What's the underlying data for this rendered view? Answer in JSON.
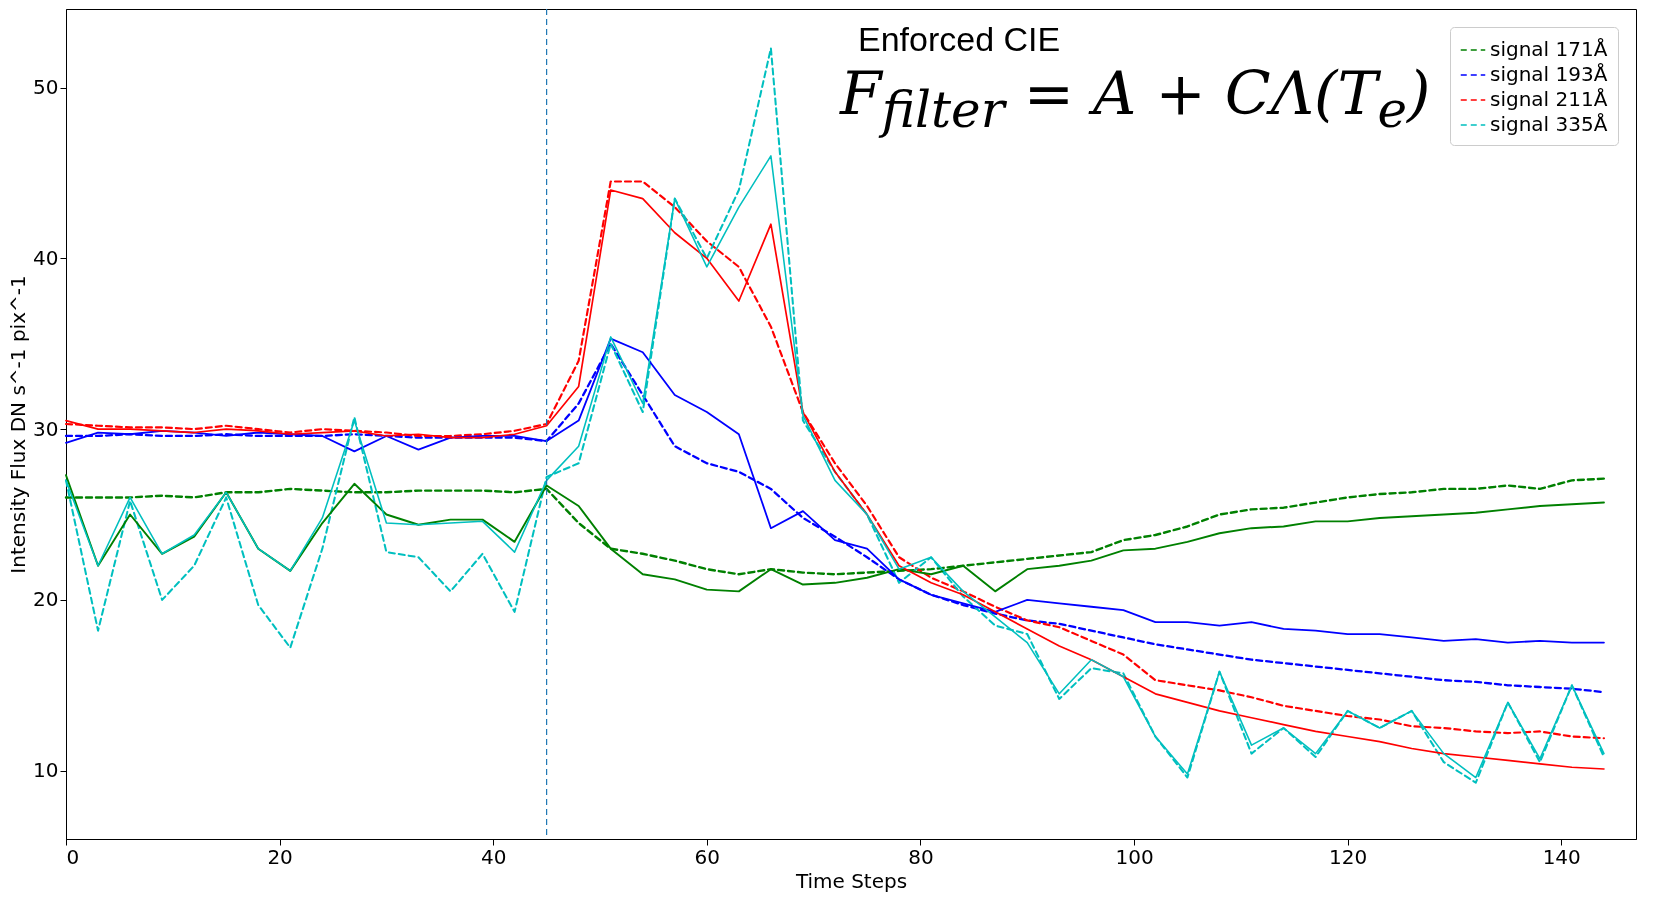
{
  "chart_data": {
    "type": "line",
    "title": "Enforced CIE",
    "annotations": [
      "F$_{filter}$ = A + CΛ(T$_{e}$)"
    ],
    "xlabel": "Time Steps",
    "ylabel": "Intensity Flux DN s^-1 pix^-1",
    "xlim": [
      0,
      147
    ],
    "xticks": [
      0,
      20,
      40,
      60,
      80,
      100,
      120,
      140
    ],
    "ylim": [
      6,
      54.6
    ],
    "yticks": [
      10,
      20,
      30,
      40,
      50
    ],
    "legend": "top right",
    "grid": false,
    "x": [
      0,
      3,
      6,
      9,
      12,
      15,
      18,
      21,
      24,
      27,
      30,
      33,
      36,
      39,
      42,
      45,
      48,
      51,
      54,
      57,
      60,
      63,
      66,
      69,
      72,
      75,
      78,
      81,
      84,
      87,
      90,
      93,
      96,
      99,
      102,
      105,
      108,
      111,
      114,
      117,
      120,
      123,
      126,
      129,
      132,
      135,
      138,
      141,
      144
    ],
    "ref_lines": [
      {
        "axis": "x",
        "value": 45,
        "color": "#1f77b4",
        "line_style": "dashed"
      }
    ],
    "series": [
      {
        "name": "signal 171Å",
        "color": "#008000",
        "line_style": "dashed",
        "values": [
          26,
          26,
          26,
          26.1,
          26,
          26.3,
          26.3,
          26.5,
          26.4,
          26.3,
          26.3,
          26.4,
          26.4,
          26.4,
          26.3,
          26.5,
          24.5,
          23,
          22.7,
          22.3,
          21.8,
          21.5,
          21.8,
          21.6,
          21.5,
          21.6,
          21.7,
          21.8,
          22,
          22.2,
          22.4,
          22.6,
          22.8,
          23.5,
          23.8,
          24.3,
          25,
          25.3,
          25.4,
          25.7,
          26,
          26.2,
          26.3,
          26.5,
          26.5,
          26.7,
          26.5,
          27,
          27.1
        ]
      },
      {
        "name": "signal 193Å",
        "color": "#0000ff",
        "line_style": "dashed",
        "values": [
          29.6,
          29.6,
          29.7,
          29.6,
          29.6,
          29.7,
          29.6,
          29.6,
          29.6,
          29.7,
          29.6,
          29.5,
          29.5,
          29.5,
          29.5,
          29.3,
          31.5,
          35,
          32,
          29,
          28,
          27.5,
          26.5,
          24.8,
          23.7,
          22.5,
          21.2,
          20.3,
          19.7,
          19.2,
          18.8,
          18.6,
          18.2,
          17.8,
          17.4,
          17.1,
          16.8,
          16.5,
          16.3,
          16.1,
          15.9,
          15.7,
          15.5,
          15.3,
          15.2,
          15,
          14.9,
          14.8,
          14.6
        ]
      },
      {
        "name": "signal 211Å",
        "color": "#ff0000",
        "line_style": "dashed",
        "values": [
          30.3,
          30.2,
          30.1,
          30.1,
          30,
          30.2,
          30,
          29.8,
          30,
          29.9,
          29.8,
          29.6,
          29.6,
          29.7,
          29.9,
          30.3,
          34,
          44.5,
          44.5,
          43,
          41,
          39.5,
          36,
          31,
          28,
          25.5,
          22.5,
          21.3,
          20.5,
          19.6,
          18.8,
          18.4,
          17.6,
          16.8,
          15.3,
          15,
          14.7,
          14.3,
          13.8,
          13.5,
          13.2,
          13,
          12.6,
          12.5,
          12.3,
          12.2,
          12.3,
          12,
          11.9
        ]
      },
      {
        "name": "signal 335Å",
        "color": "#00bfbf",
        "line_style": "dashed",
        "values": [
          27,
          18.2,
          25.8,
          20,
          22,
          26,
          19.7,
          17.2,
          23,
          30.7,
          22.8,
          22.5,
          20.5,
          22.7,
          19.3,
          27.2,
          28,
          35,
          31,
          43.5,
          40,
          44,
          52.3,
          30.5,
          27.5,
          25,
          21,
          22.5,
          20.2,
          18.5,
          18,
          14.2,
          16,
          15.7,
          12,
          9.6,
          15.8,
          11,
          12.5,
          10.8,
          13.5,
          12.5,
          13.5,
          10.5,
          9.3,
          14,
          10.5,
          15,
          10.8
        ]
      },
      {
        "color": "#008000",
        "line_style": "solid",
        "values": [
          27.3,
          22,
          25,
          22.7,
          23.7,
          26.3,
          23,
          21.7,
          24.5,
          26.8,
          25,
          24.4,
          24.7,
          24.7,
          23.4,
          26.7,
          25.5,
          23,
          21.5,
          21.2,
          20.6,
          20.5,
          21.8,
          20.9,
          21,
          21.3,
          21.8,
          21.5,
          22,
          20.5,
          21.8,
          22,
          22.3,
          22.9,
          23,
          23.4,
          23.9,
          24.2,
          24.3,
          24.6,
          24.6,
          24.8,
          24.9,
          25,
          25.1,
          25.3,
          25.5,
          25.6,
          25.7
        ]
      },
      {
        "color": "#0000ff",
        "line_style": "solid",
        "values": [
          29.2,
          29.8,
          29.7,
          29.9,
          29.8,
          29.6,
          29.8,
          29.7,
          29.6,
          28.7,
          29.6,
          28.8,
          29.5,
          29.6,
          29.6,
          29.3,
          30.5,
          35.3,
          34.5,
          32,
          31,
          29.7,
          24.2,
          25.2,
          23.5,
          23,
          21.2,
          20.3,
          19.8,
          19.3,
          20,
          19.8,
          19.6,
          19.4,
          18.7,
          18.7,
          18.5,
          18.7,
          18.3,
          18.2,
          18,
          18,
          17.8,
          17.6,
          17.7,
          17.5,
          17.6,
          17.5,
          17.5
        ]
      },
      {
        "color": "#ff0000",
        "line_style": "solid",
        "values": [
          30.5,
          30,
          30,
          29.9,
          29.8,
          30,
          29.9,
          29.7,
          29.8,
          29.9,
          29.6,
          29.7,
          29.5,
          29.5,
          29.7,
          30.2,
          32.5,
          44,
          43.5,
          41.5,
          40,
          37.5,
          42,
          31,
          27.5,
          25,
          22,
          21,
          20.3,
          19.3,
          18.3,
          17.3,
          16.5,
          15.5,
          14.5,
          14,
          13.5,
          13.1,
          12.7,
          12.3,
          12,
          11.7,
          11.3,
          11,
          10.8,
          10.6,
          10.4,
          10.2,
          10.1
        ]
      },
      {
        "color": "#00bfbf",
        "line_style": "solid",
        "values": [
          27,
          22,
          26,
          22.7,
          23.8,
          26.3,
          23,
          21.7,
          24.8,
          30.5,
          24.5,
          24.4,
          24.5,
          24.6,
          22.8,
          27,
          29,
          35.4,
          31.5,
          43.5,
          39.5,
          43,
          46,
          30.8,
          27,
          25,
          21.8,
          22.5,
          20.5,
          19,
          17.5,
          14.5,
          16.5,
          15.5,
          12,
          9.8,
          15.8,
          11.5,
          12.5,
          11,
          13.5,
          12.5,
          13.5,
          11,
          9.6,
          14,
          10.7,
          15,
          11
        ]
      }
    ]
  }
}
